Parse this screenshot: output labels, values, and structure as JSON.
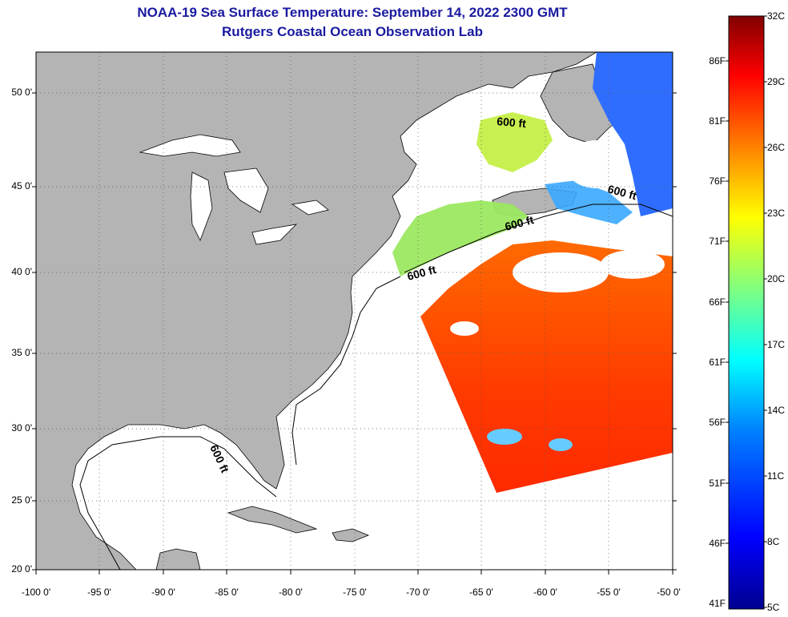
{
  "title": {
    "line1": "NOAA-19 Sea Surface Temperature:  September 14, 2022 2300 GMT",
    "line2": "Rutgers Coastal Ocean Observation Lab"
  },
  "map": {
    "lat_labels": [
      "50 0'",
      "45 0'",
      "40 0'",
      "35 0'",
      "30 0'",
      "25 0'",
      "20 0'"
    ],
    "lon_labels": [
      "-100 0'",
      "-95 0'",
      "-90 0'",
      "-85 0'",
      "-80 0'",
      "-75 0'",
      "-70 0'",
      "-65 0'",
      "-60 0'",
      "-55 0'",
      "-50 0'"
    ],
    "contour_label": "600 ft",
    "colors": {
      "land": "#b4b4b4",
      "ocean_nodata": "#ffffff",
      "cloud": "#ffffff"
    }
  },
  "colorbar": {
    "fahrenheit_labels": [
      "86F",
      "81F",
      "76F",
      "71F",
      "66F",
      "61F",
      "56F",
      "51F",
      "46F",
      "41F"
    ],
    "celsius_labels": [
      "32C",
      "29C",
      "26C",
      "23C",
      "20C",
      "17C",
      "14C",
      "11C",
      "8C",
      "5C"
    ],
    "colormap": [
      "#00008f",
      "#0000ff",
      "#0080ff",
      "#00ffff",
      "#80ff80",
      "#ffff00",
      "#ff8000",
      "#ff0000",
      "#800000"
    ]
  }
}
